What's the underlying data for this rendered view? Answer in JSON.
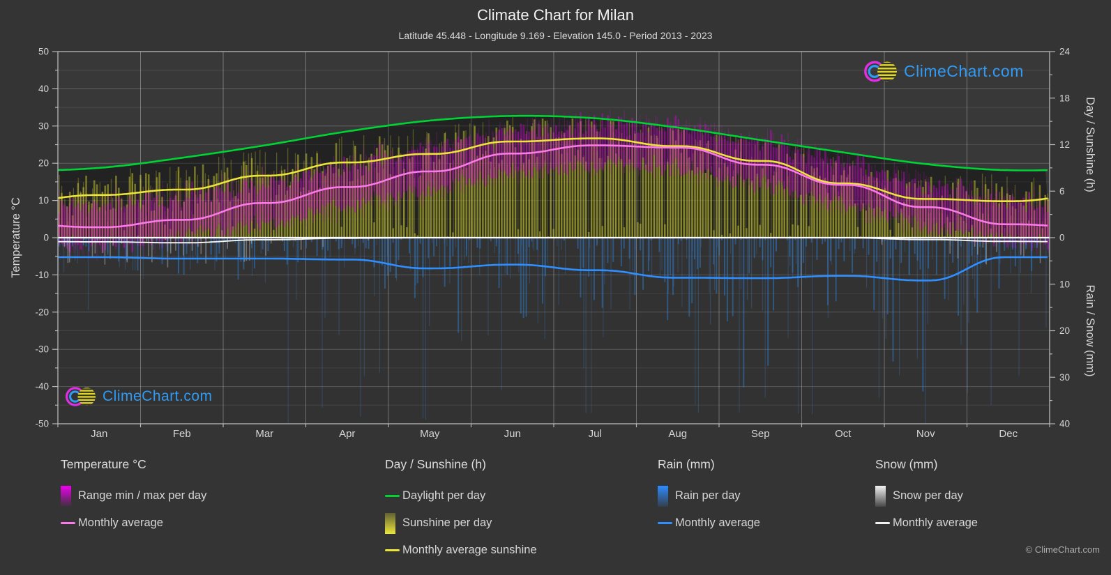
{
  "header": {
    "title": "Climate Chart for Milan",
    "subtitle": "Latitude 45.448 - Longitude 9.169 - Elevation 145.0 - Period 2013 - 2023"
  },
  "branding": {
    "watermark": "ClimeChart.com",
    "copyright": "© ClimeChart.com",
    "brand_blue": "#2f9bf5",
    "logo_magenta": "#e02ee0",
    "logo_yellow": "#e3d61f"
  },
  "chart_data": {
    "type": "climate-composite",
    "title": "Climate Chart for Milan",
    "months": [
      "Jan",
      "Feb",
      "Mar",
      "Apr",
      "May",
      "Jun",
      "Jul",
      "Aug",
      "Sep",
      "Oct",
      "Nov",
      "Dec"
    ],
    "axes": {
      "left": {
        "title": "Temperature °C",
        "min": -50,
        "max": 50,
        "major_ticks": [
          50,
          40,
          30,
          20,
          10,
          0,
          -10,
          -20,
          -30,
          -40,
          -50
        ],
        "minor_step": 5
      },
      "right_top": {
        "title": "Day / Sunshine (h)",
        "min": 0,
        "max": 24,
        "major_ticks": [
          24,
          18,
          12,
          6,
          0
        ],
        "minor_step": 3
      },
      "right_bottom": {
        "title": "Rain / Snow (mm)",
        "min": 0,
        "max": 40,
        "major_ticks": [
          10,
          20,
          30,
          40
        ],
        "minor_step": 5
      },
      "grid": true
    },
    "series": [
      {
        "key": "daylight",
        "name": "Daylight per day",
        "unit": "h",
        "type": "line",
        "color": "#00d435",
        "monthly": [
          9.0,
          10.3,
          11.9,
          13.7,
          15.1,
          15.7,
          15.4,
          14.2,
          12.6,
          11.0,
          9.5,
          8.7
        ]
      },
      {
        "key": "sunshine_avg",
        "name": "Monthly average sunshine",
        "unit": "h",
        "type": "line",
        "color": "#ebe53a",
        "monthly": [
          5.5,
          6.2,
          8.0,
          9.7,
          10.8,
          12.4,
          12.8,
          11.8,
          9.9,
          7.0,
          5.0,
          4.7
        ]
      },
      {
        "key": "temp_avg",
        "name": "Monthly average temperature",
        "unit": "°C",
        "type": "line",
        "color": "#f97ae8",
        "monthly": [
          2.8,
          4.8,
          9.3,
          13.6,
          17.8,
          22.6,
          24.8,
          24.2,
          19.6,
          14.2,
          8.2,
          3.6
        ]
      },
      {
        "key": "rain_avg",
        "name": "Monthly average rain",
        "unit": "mm/day",
        "type": "line",
        "color": "#2f8fff",
        "monthly": [
          4.2,
          4.5,
          4.5,
          4.7,
          6.6,
          5.8,
          7.0,
          8.6,
          8.7,
          8.2,
          9.2,
          4.2
        ]
      },
      {
        "key": "snow_avg",
        "name": "Monthly average snow",
        "unit": "mm/day",
        "type": "line",
        "color": "#f0f0f0",
        "monthly": [
          0.9,
          1.1,
          0.45,
          0.1,
          0,
          0,
          0,
          0,
          0,
          0,
          0.4,
          0.8
        ]
      },
      {
        "key": "temp_range",
        "name": "Range min / max per day",
        "unit": "°C",
        "type": "bars",
        "color": "#dc00dc",
        "typical_daily_span": 10
      },
      {
        "key": "sunshine_day",
        "name": "Sunshine per day",
        "unit": "h",
        "type": "bars",
        "color": "#c9c92e"
      },
      {
        "key": "rain_day",
        "name": "Rain per day",
        "unit": "mm",
        "type": "bars",
        "color": "#2e86e0"
      },
      {
        "key": "snow_day",
        "name": "Snow per day",
        "unit": "mm",
        "type": "bars",
        "color": "#e8e8e8"
      }
    ]
  },
  "legend": {
    "groups": [
      {
        "key": "temperature",
        "title": "Temperature °C",
        "items": [
          {
            "key": "temp-range",
            "kind": "gradient",
            "from": "#ee00ee",
            "to": "rgba(160,0,160,0.06)",
            "label": "Range min / max per day"
          },
          {
            "key": "temp-avg",
            "kind": "line",
            "color": "#f97ae8",
            "label": "Monthly average"
          }
        ]
      },
      {
        "key": "day-sunshine",
        "title": "Day / Sunshine (h)",
        "items": [
          {
            "key": "daylight",
            "kind": "line",
            "color": "#00d435",
            "label": "Daylight per day"
          },
          {
            "key": "sunshine-day",
            "kind": "gradient",
            "from": "rgba(201,201,46,0.30)",
            "to": "#ebe53a",
            "label": "Sunshine per day"
          },
          {
            "key": "sunshine-avg",
            "kind": "line",
            "color": "#ebe53a",
            "label": "Monthly average sunshine"
          }
        ]
      },
      {
        "key": "rain",
        "title": "Rain (mm)",
        "items": [
          {
            "key": "rain-day",
            "kind": "gradient",
            "from": "#2e8bff",
            "to": "rgba(46,139,255,0.12)",
            "label": "Rain per day"
          },
          {
            "key": "rain-avg",
            "kind": "line",
            "color": "#2f8fff",
            "label": "Monthly average"
          }
        ]
      },
      {
        "key": "snow",
        "title": "Snow (mm)",
        "items": [
          {
            "key": "snow-day",
            "kind": "gradient",
            "from": "#f2f2f2",
            "to": "rgba(242,242,242,0.10)",
            "label": "Snow per day"
          },
          {
            "key": "snow-avg",
            "kind": "line",
            "color": "#f2f2f2",
            "label": "Monthly average"
          }
        ]
      }
    ]
  }
}
